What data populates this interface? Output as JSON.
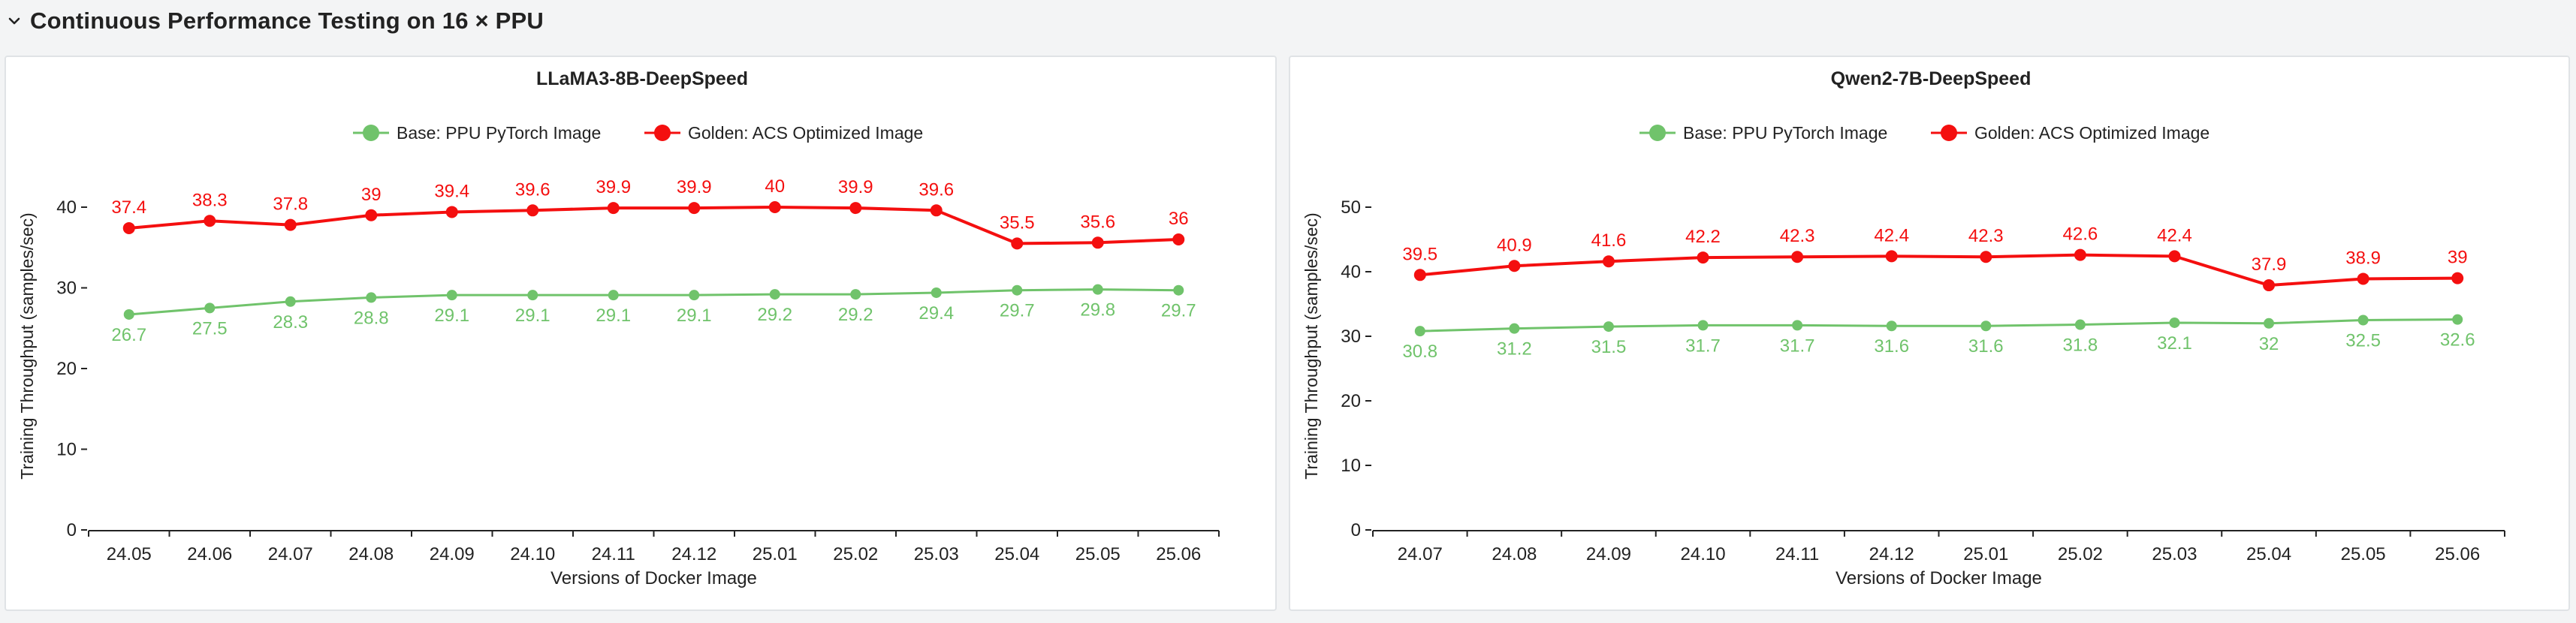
{
  "section": {
    "title": "Continuous Performance Testing on 16 × PPU",
    "toggle_icon": "chevron-down-icon"
  },
  "colors": {
    "base": "#70c36b",
    "golden": "#f40f0f",
    "axis": "#222222",
    "panel_border": "#e0e3e6"
  },
  "chart_data": [
    {
      "type": "line",
      "title": "LLaMA3-8B-DeepSpeed",
      "xlabel": "Versions of Docker Image",
      "ylabel": "Training Throughput (samples/sec)",
      "ylim": [
        0,
        40
      ],
      "yticks": [
        0,
        10,
        20,
        30,
        40
      ],
      "legend_position": "top-center",
      "grid": false,
      "categories": [
        "24.05",
        "24.06",
        "24.07",
        "24.08",
        "24.09",
        "24.10",
        "24.11",
        "24.12",
        "25.01",
        "25.02",
        "25.03",
        "25.04",
        "25.05",
        "25.06"
      ],
      "series": [
        {
          "name": "Base: PPU PyTorch Image",
          "color": "#70c36b",
          "values": [
            26.7,
            27.5,
            28.3,
            28.8,
            29.1,
            29.1,
            29.1,
            29.1,
            29.2,
            29.2,
            29.4,
            29.7,
            29.8,
            29.7
          ]
        },
        {
          "name": "Golden: ACS Optimized Image",
          "color": "#f40f0f",
          "values": [
            37.4,
            38.3,
            37.8,
            39,
            39.4,
            39.6,
            39.9,
            39.9,
            40,
            39.9,
            39.6,
            35.5,
            35.6,
            36
          ]
        }
      ]
    },
    {
      "type": "line",
      "title": "Qwen2-7B-DeepSpeed",
      "xlabel": "Versions of Docker Image",
      "ylabel": "Training Throughput (samples/sec)",
      "ylim": [
        0,
        50
      ],
      "yticks": [
        0,
        10,
        20,
        30,
        40,
        50
      ],
      "legend_position": "top-center",
      "grid": false,
      "categories": [
        "24.07",
        "24.08",
        "24.09",
        "24.10",
        "24.11",
        "24.12",
        "25.01",
        "25.02",
        "25.03",
        "25.04",
        "25.05",
        "25.06"
      ],
      "series": [
        {
          "name": "Base: PPU PyTorch Image",
          "color": "#70c36b",
          "values": [
            30.8,
            31.2,
            31.5,
            31.7,
            31.7,
            31.6,
            31.6,
            31.8,
            32.1,
            32,
            32.5,
            32.6
          ]
        },
        {
          "name": "Golden: ACS Optimized Image",
          "color": "#f40f0f",
          "values": [
            39.5,
            40.9,
            41.6,
            42.2,
            42.3,
            42.4,
            42.3,
            42.6,
            42.4,
            37.9,
            38.9,
            39
          ]
        }
      ]
    }
  ]
}
